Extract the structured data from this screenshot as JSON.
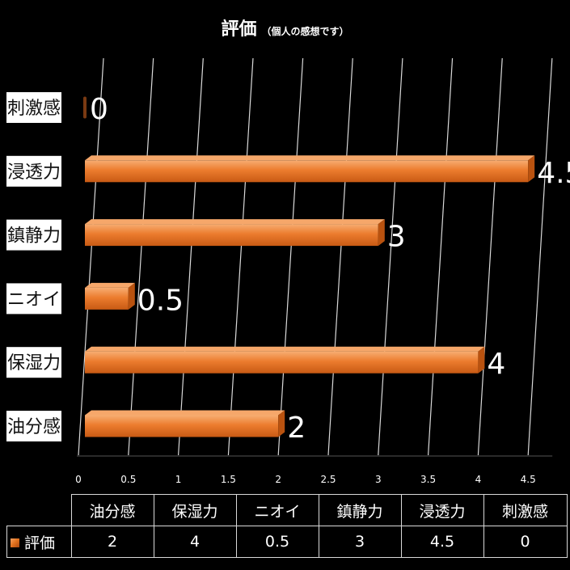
{
  "chart_data": {
    "type": "bar",
    "orientation": "horizontal",
    "title": "評価",
    "subtitle": "（個人の感想です）",
    "categories": [
      "油分感",
      "保湿力",
      "ニオイ",
      "鎮静力",
      "浸透力",
      "刺激感"
    ],
    "series": [
      {
        "name": "評価",
        "values": [
          2,
          4,
          0.5,
          3,
          4.5,
          0
        ]
      }
    ],
    "x_ticks": [
      "0",
      "0.5",
      "1",
      "1.5",
      "2",
      "2.5",
      "3",
      "3.5",
      "4",
      "4.5"
    ],
    "xlim": [
      0,
      4.5
    ],
    "grid": true,
    "data_labels": true,
    "data_table": true,
    "bar_color": "#e8782a"
  },
  "colors": {
    "background": "#000000",
    "bar": "#e8782a",
    "bar_light": "#f5a060",
    "bar_dark": "#a8460f",
    "grid": "#d9d9d9",
    "text": "#ffffff"
  }
}
